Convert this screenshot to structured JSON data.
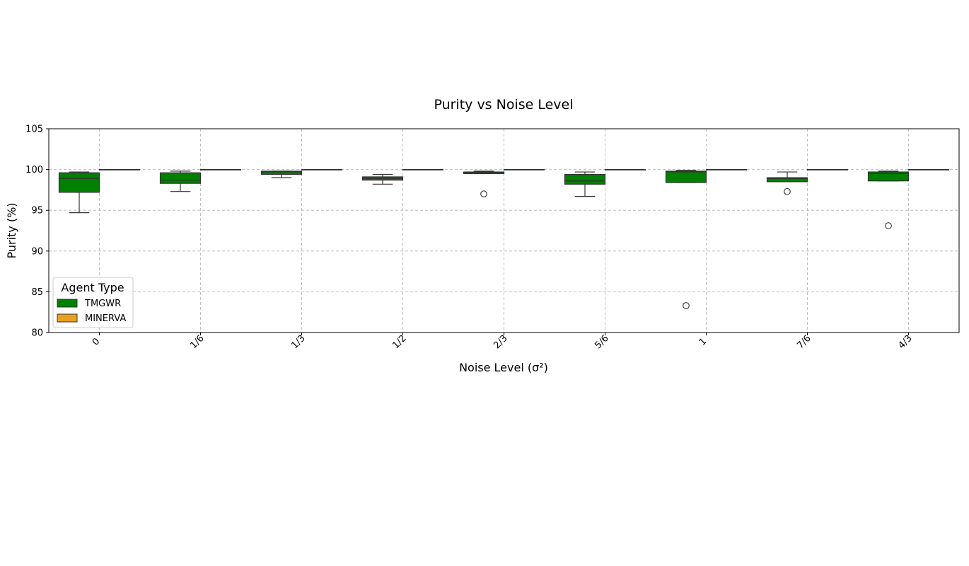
{
  "chart_data": {
    "type": "box",
    "title": "Purity vs Noise Level",
    "xlabel": "Noise Level (σ²)",
    "ylabel": "Purity (%)",
    "categories": [
      "0",
      "1/6",
      "1/3",
      "1/2",
      "2/3",
      "5/6",
      "1",
      "7/6",
      "4/3"
    ],
    "ylim": [
      80,
      105
    ],
    "yticks": [
      80,
      85,
      90,
      95,
      100,
      105
    ],
    "grid": true,
    "legend": {
      "title": "Agent Type",
      "placement": "lower-left",
      "entries": [
        "TMGWR",
        "MINERVA"
      ]
    },
    "series": [
      {
        "name": "TMGWR",
        "color": "#008000",
        "boxes": [
          {
            "whislo": 94.7,
            "q1": 97.2,
            "median": 98.9,
            "q3": 99.6,
            "whishi": 99.7,
            "fliers": []
          },
          {
            "whislo": 97.3,
            "q1": 98.3,
            "median": 98.7,
            "q3": 99.6,
            "whishi": 99.8,
            "fliers": []
          },
          {
            "whislo": 99.0,
            "q1": 99.4,
            "median": 99.7,
            "q3": 99.8,
            "whishi": 99.8,
            "fliers": []
          },
          {
            "whislo": 98.2,
            "q1": 98.7,
            "median": 98.9,
            "q3": 99.1,
            "whishi": 99.4,
            "fliers": []
          },
          {
            "whislo": 99.5,
            "q1": 99.5,
            "median": 99.6,
            "q3": 99.7,
            "whishi": 99.8,
            "fliers": [
              97.0
            ]
          },
          {
            "whislo": 96.7,
            "q1": 98.2,
            "median": 98.6,
            "q3": 99.4,
            "whishi": 99.7,
            "fliers": []
          },
          {
            "whislo": 98.4,
            "q1": 98.4,
            "median": 99.7,
            "q3": 99.8,
            "whishi": 99.9,
            "fliers": [
              83.3
            ]
          },
          {
            "whislo": 98.5,
            "q1": 98.5,
            "median": 98.9,
            "q3": 99.0,
            "whishi": 99.7,
            "fliers": [
              97.3
            ]
          },
          {
            "whislo": 98.6,
            "q1": 98.6,
            "median": 99.5,
            "q3": 99.7,
            "whishi": 99.8,
            "fliers": [
              93.1
            ]
          }
        ]
      },
      {
        "name": "MINERVA",
        "color": "#e8a020",
        "boxes": [
          {
            "whislo": 100,
            "q1": 100,
            "median": 100,
            "q3": 100,
            "whishi": 100,
            "fliers": []
          },
          {
            "whislo": 100,
            "q1": 100,
            "median": 100,
            "q3": 100,
            "whishi": 100,
            "fliers": []
          },
          {
            "whislo": 100,
            "q1": 100,
            "median": 100,
            "q3": 100,
            "whishi": 100,
            "fliers": []
          },
          {
            "whislo": 100,
            "q1": 100,
            "median": 100,
            "q3": 100,
            "whishi": 100,
            "fliers": []
          },
          {
            "whislo": 100,
            "q1": 100,
            "median": 100,
            "q3": 100,
            "whishi": 100,
            "fliers": []
          },
          {
            "whislo": 100,
            "q1": 100,
            "median": 100,
            "q3": 100,
            "whishi": 100,
            "fliers": []
          },
          {
            "whislo": 100,
            "q1": 100,
            "median": 100,
            "q3": 100,
            "whishi": 100,
            "fliers": []
          },
          {
            "whislo": 100,
            "q1": 100,
            "median": 100,
            "q3": 100,
            "whishi": 100,
            "fliers": []
          },
          {
            "whislo": 100,
            "q1": 100,
            "median": 100,
            "q3": 100,
            "whishi": 100,
            "fliers": []
          }
        ]
      }
    ]
  }
}
